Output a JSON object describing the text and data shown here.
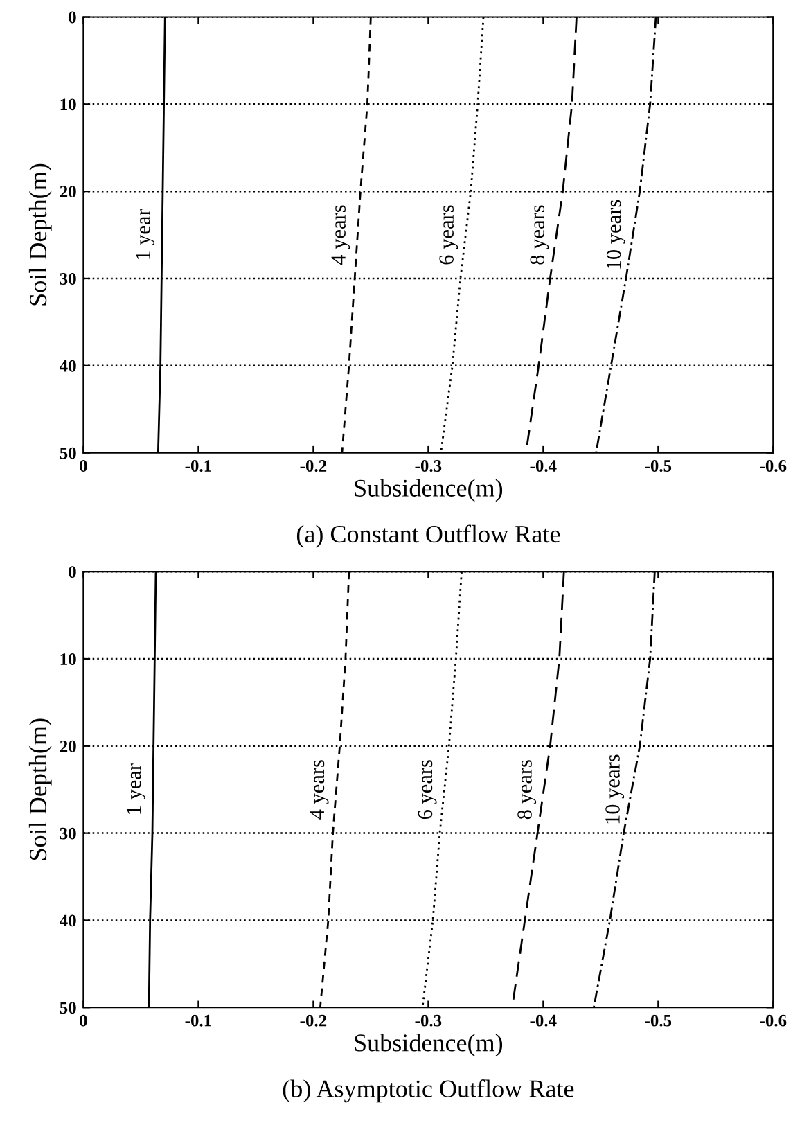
{
  "chart_data": [
    {
      "type": "line",
      "title": "(a) Constant Outflow Rate",
      "xlabel": "Subsidence(m)",
      "ylabel": "Soil Depth(m)",
      "xlim": [
        0,
        -0.6
      ],
      "xticks": [
        0,
        -0.1,
        -0.2,
        -0.3,
        -0.4,
        -0.5,
        -0.6
      ],
      "ylim": [
        50,
        0
      ],
      "yticks": [
        0,
        10,
        20,
        30,
        40,
        50
      ],
      "grid": "y",
      "legend": false,
      "series": [
        {
          "name": "1 year",
          "color": "#000000",
          "line_style": "solid",
          "x": [
            -0.071,
            -0.07,
            -0.069,
            -0.068,
            -0.067,
            -0.065
          ],
          "values": [
            0,
            10,
            20,
            30,
            40,
            50
          ]
        },
        {
          "name": "4 years",
          "color": "#000000",
          "line_style": "dashed",
          "x": [
            -0.25,
            -0.247,
            -0.241,
            -0.236,
            -0.231,
            -0.225
          ],
          "values": [
            0,
            10,
            20,
            30,
            40,
            50
          ]
        },
        {
          "name": "6 years",
          "color": "#000000",
          "line_style": "dotted",
          "x": [
            -0.348,
            -0.343,
            -0.337,
            -0.328,
            -0.321,
            -0.311
          ],
          "values": [
            0,
            10,
            20,
            30,
            40,
            50
          ]
        },
        {
          "name": "8 years",
          "color": "#000000",
          "line_style": "longdash",
          "x": [
            -0.429,
            -0.425,
            -0.417,
            -0.406,
            -0.396,
            -0.385
          ],
          "values": [
            0,
            10,
            20,
            30,
            40,
            50
          ]
        },
        {
          "name": "10 years",
          "color": "#000000",
          "line_style": "dashdot",
          "x": [
            -0.498,
            -0.493,
            -0.484,
            -0.472,
            -0.459,
            -0.446
          ],
          "values": [
            0,
            10,
            20,
            30,
            40,
            50
          ]
        }
      ]
    },
    {
      "type": "line",
      "title": "(b) Asymptotic Outflow Rate",
      "xlabel": "Subsidence(m)",
      "ylabel": "Soil Depth(m)",
      "xlim": [
        0,
        -0.6
      ],
      "xticks": [
        0,
        -0.1,
        -0.2,
        -0.3,
        -0.4,
        -0.5,
        -0.6
      ],
      "ylim": [
        50,
        0
      ],
      "yticks": [
        0,
        10,
        20,
        30,
        40,
        50
      ],
      "grid": "y",
      "legend": false,
      "series": [
        {
          "name": "1 year",
          "color": "#000000",
          "line_style": "solid",
          "x": [
            -0.063,
            -0.062,
            -0.061,
            -0.06,
            -0.058,
            -0.057
          ],
          "values": [
            0,
            10,
            20,
            30,
            40,
            50
          ]
        },
        {
          "name": "4 years",
          "color": "#000000",
          "line_style": "dashed",
          "x": [
            -0.231,
            -0.228,
            -0.223,
            -0.217,
            -0.213,
            -0.206
          ],
          "values": [
            0,
            10,
            20,
            30,
            40,
            50
          ]
        },
        {
          "name": "6 years",
          "color": "#000000",
          "line_style": "dotted",
          "x": [
            -0.329,
            -0.324,
            -0.318,
            -0.31,
            -0.304,
            -0.295
          ],
          "values": [
            0,
            10,
            20,
            30,
            40,
            50
          ]
        },
        {
          "name": "8 years",
          "color": "#000000",
          "line_style": "longdash",
          "x": [
            -0.418,
            -0.414,
            -0.406,
            -0.395,
            -0.384,
            -0.373
          ],
          "values": [
            0,
            10,
            20,
            30,
            40,
            50
          ]
        },
        {
          "name": "10 years",
          "color": "#000000",
          "line_style": "dashdot",
          "x": [
            -0.497,
            -0.493,
            -0.484,
            -0.47,
            -0.458,
            -0.444
          ],
          "values": [
            0,
            10,
            20,
            30,
            40,
            50
          ]
        }
      ]
    }
  ]
}
